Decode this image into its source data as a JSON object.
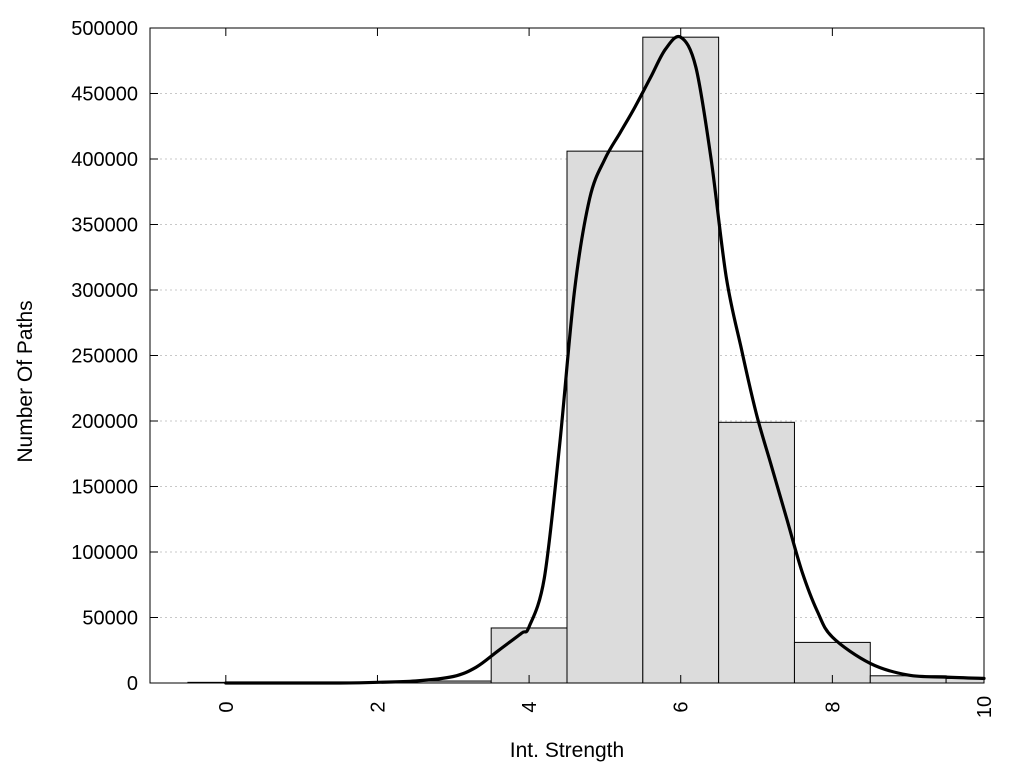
{
  "chart_data": {
    "type": "bar",
    "title": "",
    "xlabel": "Int. Strength",
    "ylabel": "Number Of Paths",
    "xlim": [
      -1,
      10
    ],
    "ylim": [
      0,
      500000
    ],
    "grid": "horizontal dotted",
    "x_ticks": [
      "0",
      "2",
      "4",
      "6",
      "8",
      "10"
    ],
    "y_ticks": [
      "0",
      "50000",
      "100000",
      "150000",
      "200000",
      "250000",
      "300000",
      "350000",
      "400000",
      "450000",
      "500000"
    ],
    "bar_width": 1,
    "bars": [
      {
        "x": 0,
        "value": 500
      },
      {
        "x": 1,
        "value": 500
      },
      {
        "x": 2,
        "value": 600
      },
      {
        "x": 3,
        "value": 1500
      },
      {
        "x": 4,
        "value": 42000
      },
      {
        "x": 5,
        "value": 406000
      },
      {
        "x": 6,
        "value": 493000
      },
      {
        "x": 7,
        "value": 199000
      },
      {
        "x": 8,
        "value": 31000
      },
      {
        "x": 9,
        "value": 5500
      },
      {
        "x": 10,
        "value": 3500
      }
    ],
    "curve": {
      "x": [
        0,
        0.5,
        1,
        1.5,
        2,
        2.5,
        3,
        3.3,
        3.6,
        3.9,
        4.0,
        4.2,
        4.4,
        4.6,
        4.8,
        5.0,
        5.2,
        5.4,
        5.6,
        5.8,
        6.0,
        6.2,
        6.4,
        6.6,
        6.8,
        7.0,
        7.2,
        7.4,
        7.6,
        7.8,
        8.0,
        8.5,
        9.0,
        9.5,
        10.0
      ],
      "y": [
        0,
        0,
        0,
        0,
        500,
        1500,
        5000,
        12000,
        25000,
        38000,
        43000,
        80000,
        180000,
        300000,
        370000,
        400000,
        420000,
        440000,
        462000,
        484000,
        493000,
        470000,
        400000,
        310000,
        255000,
        205000,
        165000,
        125000,
        85000,
        55000,
        35000,
        15000,
        6000,
        4500,
        3500
      ]
    },
    "colors": {
      "bar_fill": "#dcdcdc",
      "bar_stroke": "#000000",
      "curve": "#000000",
      "grid": "#c8c8c8"
    }
  }
}
